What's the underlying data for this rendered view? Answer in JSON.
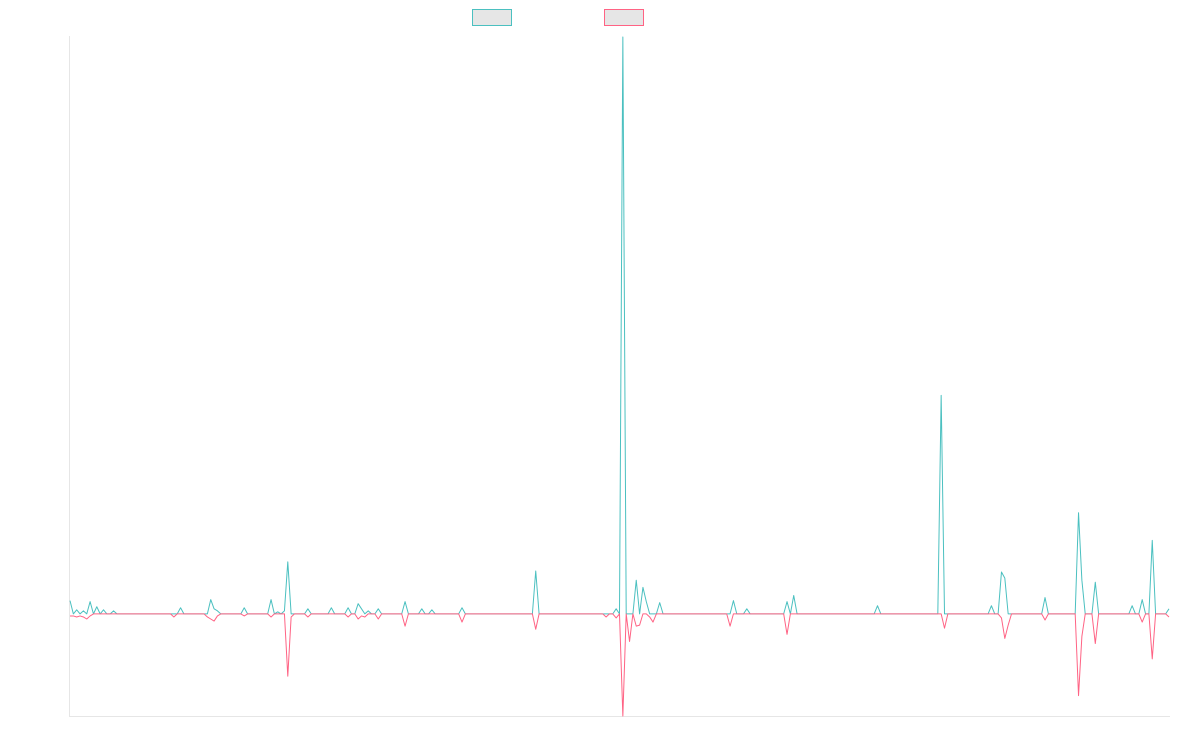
{
  "colors": {
    "series_1": "#4bc0c0",
    "series_2": "#ff6384",
    "legend_fill": "#e6e6e6",
    "axis": "#e6e6e6"
  },
  "chart_data": {
    "type": "line",
    "title": "",
    "xlabel": "",
    "ylabel": "",
    "grid": false,
    "legend": "top-center",
    "ylim": [
      -100,
      565
    ],
    "series": [
      {
        "name": "",
        "values": [
          13,
          0,
          4,
          0,
          3,
          0,
          12,
          0,
          7,
          0,
          4,
          0,
          0,
          3,
          0,
          0,
          0,
          0,
          0,
          0,
          0,
          0,
          0,
          0,
          0,
          0,
          0,
          0,
          0,
          0,
          0,
          0,
          0,
          6,
          0,
          0,
          0,
          0,
          0,
          0,
          0,
          0,
          14,
          5,
          3,
          0,
          0,
          0,
          0,
          0,
          0,
          0,
          6,
          0,
          0,
          0,
          0,
          0,
          0,
          0,
          14,
          0,
          2,
          0,
          3,
          51,
          0,
          0,
          0,
          0,
          0,
          5,
          0,
          0,
          0,
          0,
          0,
          0,
          6,
          0,
          0,
          0,
          0,
          6,
          0,
          0,
          10,
          5,
          0,
          3,
          0,
          0,
          5,
          0,
          0,
          0,
          0,
          0,
          0,
          0,
          12,
          0,
          0,
          0,
          0,
          5,
          0,
          0,
          4,
          0,
          0,
          0,
          0,
          0,
          0,
          0,
          0,
          6,
          0,
          0,
          0,
          0,
          0,
          0,
          0,
          0,
          0,
          0,
          0,
          0,
          0,
          0,
          0,
          0,
          0,
          0,
          0,
          0,
          0,
          42,
          0,
          0,
          0,
          0,
          0,
          0,
          0,
          0,
          0,
          0,
          0,
          0,
          0,
          0,
          0,
          0,
          0,
          0,
          0,
          0,
          0,
          0,
          0,
          5,
          0,
          565,
          0,
          0,
          0,
          33,
          0,
          26,
          12,
          0,
          0,
          0,
          11,
          0,
          0,
          0,
          0,
          0,
          0,
          0,
          0,
          0,
          0,
          0,
          0,
          0,
          0,
          0,
          0,
          0,
          0,
          0,
          0,
          0,
          13,
          0,
          0,
          0,
          5,
          0,
          0,
          0,
          0,
          0,
          0,
          0,
          0,
          0,
          0,
          0,
          12,
          0,
          18,
          0,
          0,
          0,
          0,
          0,
          0,
          0,
          0,
          0,
          0,
          0,
          0,
          0,
          0,
          0,
          0,
          0,
          0,
          0,
          0,
          0,
          0,
          0,
          0,
          8,
          0,
          0,
          0,
          0,
          0,
          0,
          0,
          0,
          0,
          0,
          0,
          0,
          0,
          0,
          0,
          0,
          0,
          0,
          214,
          0,
          0,
          0,
          0,
          0,
          0,
          0,
          0,
          0,
          0,
          0,
          0,
          0,
          0,
          8,
          0,
          0,
          41,
          35,
          0,
          0,
          0,
          0,
          0,
          0,
          0,
          0,
          0,
          0,
          0,
          16,
          0,
          0,
          0,
          0,
          0,
          0,
          0,
          0,
          0,
          99,
          33,
          0,
          0,
          0,
          31,
          0,
          0,
          0,
          0,
          0,
          0,
          0,
          0,
          0,
          0,
          8,
          0,
          0,
          14,
          0,
          0,
          72,
          0,
          0,
          0,
          0,
          5
        ]
      },
      {
        "name": "",
        "values": [
          -2,
          -2,
          -3,
          -2,
          -3,
          -5,
          -2,
          0,
          0,
          0,
          0,
          0,
          0,
          0,
          0,
          0,
          0,
          0,
          0,
          0,
          0,
          0,
          0,
          0,
          0,
          0,
          0,
          0,
          0,
          0,
          0,
          -3,
          0,
          0,
          0,
          0,
          0,
          0,
          0,
          0,
          0,
          -3,
          -5,
          -7,
          -2,
          0,
          0,
          0,
          0,
          0,
          0,
          0,
          -2,
          0,
          0,
          0,
          0,
          0,
          0,
          0,
          -3,
          0,
          0,
          0,
          0,
          -61,
          -3,
          0,
          0,
          0,
          0,
          -3,
          0,
          0,
          0,
          0,
          0,
          0,
          0,
          0,
          0,
          0,
          0,
          -3,
          0,
          0,
          -5,
          -2,
          -3,
          0,
          0,
          0,
          -5,
          0,
          0,
          0,
          0,
          0,
          0,
          0,
          -12,
          0,
          0,
          0,
          0,
          0,
          0,
          0,
          0,
          0,
          0,
          0,
          0,
          0,
          0,
          0,
          0,
          -8,
          0,
          0,
          0,
          0,
          0,
          0,
          0,
          0,
          0,
          0,
          0,
          0,
          0,
          0,
          0,
          0,
          0,
          0,
          0,
          0,
          0,
          -15,
          0,
          0,
          0,
          0,
          0,
          0,
          0,
          0,
          0,
          0,
          0,
          0,
          0,
          0,
          0,
          0,
          0,
          0,
          0,
          0,
          -3,
          0,
          0,
          -4,
          0,
          -100,
          0,
          -27,
          0,
          -12,
          -11,
          0,
          0,
          -3,
          -8,
          0,
          0,
          0,
          0,
          0,
          0,
          0,
          0,
          0,
          0,
          0,
          0,
          0,
          0,
          0,
          0,
          0,
          0,
          0,
          0,
          0,
          0,
          -12,
          0,
          0,
          0,
          0,
          0,
          0,
          0,
          0,
          0,
          0,
          0,
          0,
          0,
          0,
          0,
          0,
          -20,
          0,
          0,
          0,
          0,
          0,
          0,
          0,
          0,
          0,
          0,
          0,
          0,
          0,
          0,
          0,
          0,
          0,
          0,
          0,
          0,
          0,
          0,
          0,
          0,
          0,
          0,
          0,
          0,
          0,
          0,
          0,
          0,
          0,
          0,
          0,
          0,
          0,
          0,
          0,
          0,
          0,
          0,
          0,
          0,
          0,
          0,
          -14,
          0,
          0,
          0,
          0,
          0,
          0,
          0,
          0,
          0,
          0,
          0,
          0,
          0,
          0,
          0,
          0,
          -4,
          -24,
          -11,
          0,
          0,
          0,
          0,
          0,
          0,
          0,
          0,
          0,
          0,
          -6,
          0,
          0,
          0,
          0,
          0,
          0,
          0,
          0,
          0,
          -80,
          -22,
          0,
          0,
          0,
          -29,
          0,
          0,
          0,
          0,
          0,
          0,
          0,
          0,
          0,
          0,
          0,
          0,
          0,
          -8,
          0,
          0,
          -44,
          0,
          0,
          0,
          0,
          -3
        ]
      }
    ]
  }
}
